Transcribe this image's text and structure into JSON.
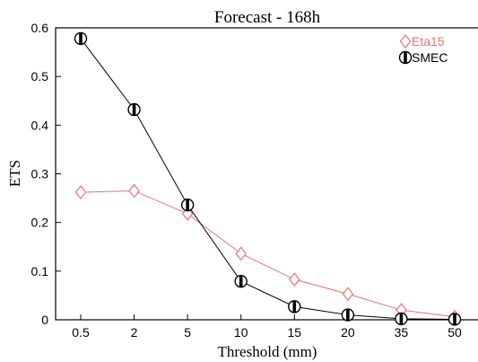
{
  "chart_data": {
    "type": "line",
    "title": "Forecast - 168h",
    "xlabel": "Threshold (mm)",
    "ylabel": "ETS",
    "categories": [
      "0.5",
      "2",
      "5",
      "10",
      "15",
      "20",
      "35",
      "50"
    ],
    "ylim": [
      0,
      0.6
    ],
    "yticks": [
      "0",
      "0.1",
      "0.2",
      "0.3",
      "0.4",
      "0.5",
      "0.6"
    ],
    "grid": false,
    "legend_position": "top-right",
    "series": [
      {
        "name": "Eta15",
        "color": "#f07070",
        "marker": "diamond",
        "values": [
          0.262,
          0.265,
          0.218,
          0.136,
          0.083,
          0.053,
          0.02,
          0.006
        ]
      },
      {
        "name": "SMEC",
        "color": "#000000",
        "marker": "half-filled-circle",
        "values": [
          0.578,
          0.432,
          0.236,
          0.079,
          0.027,
          0.01,
          0.002,
          0.001
        ]
      }
    ]
  }
}
